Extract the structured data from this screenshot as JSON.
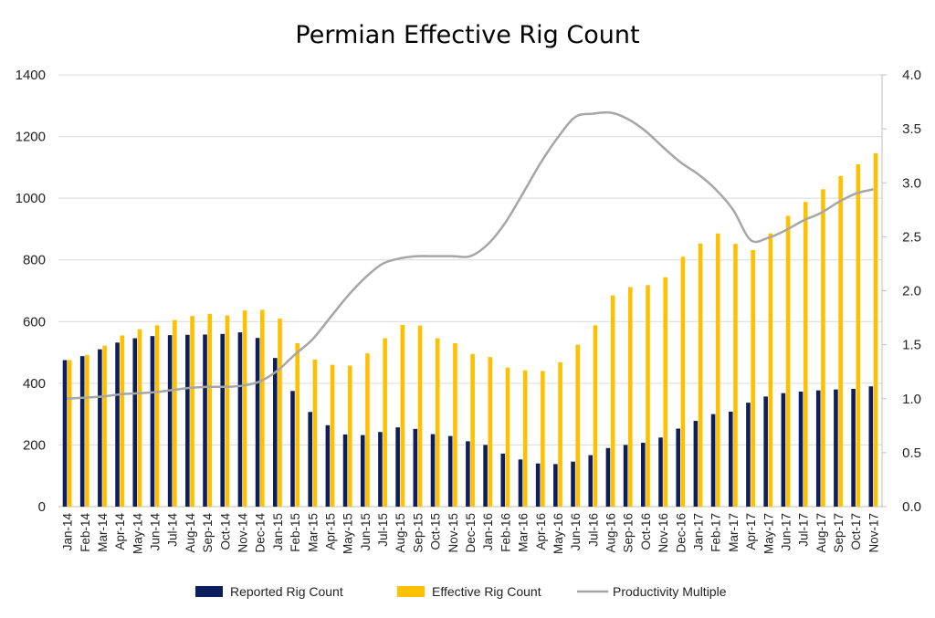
{
  "chart_data": {
    "type": "bar",
    "title": "Permian Effective Rig Count",
    "categories": [
      "Jan-14",
      "Feb-14",
      "Mar-14",
      "Apr-14",
      "May-14",
      "Jun-14",
      "Jul-14",
      "Aug-14",
      "Sep-14",
      "Oct-14",
      "Nov-14",
      "Dec-14",
      "Jan-15",
      "Feb-15",
      "Mar-15",
      "Apr-15",
      "May-15",
      "Jun-15",
      "Jul-15",
      "Aug-15",
      "Sep-15",
      "Oct-15",
      "Nov-15",
      "Dec-15",
      "Jan-16",
      "Feb-16",
      "Mar-16",
      "Apr-16",
      "May-16",
      "Jun-16",
      "Jul-16",
      "Aug-16",
      "Sep-16",
      "Oct-16",
      "Nov-16",
      "Dec-16",
      "Jan-17",
      "Feb-17",
      "Mar-17",
      "Apr-17",
      "May-17",
      "Jun-17",
      "Jul-17",
      "Aug-17",
      "Sep-17",
      "Oct-17",
      "Nov-17"
    ],
    "series": [
      {
        "name": "Reported Rig Count",
        "kind": "bar",
        "axis": "left",
        "color": "#0c1f5c",
        "values": [
          475,
          488,
          510,
          532,
          546,
          553,
          556,
          557,
          558,
          560,
          565,
          547,
          482,
          375,
          307,
          264,
          234,
          232,
          242,
          257,
          252,
          235,
          229,
          212,
          200,
          172,
          153,
          140,
          138,
          146,
          167,
          190,
          200,
          207,
          224,
          253,
          278,
          300,
          308,
          337,
          357,
          368,
          373,
          377,
          380,
          382,
          390
        ]
      },
      {
        "name": "Effective Rig Count",
        "kind": "bar",
        "axis": "left",
        "color": "#ffc000",
        "values": [
          475,
          492,
          522,
          555,
          575,
          588,
          605,
          618,
          625,
          620,
          636,
          638,
          610,
          530,
          477,
          460,
          457,
          497,
          546,
          589,
          587,
          546,
          530,
          495,
          485,
          451,
          442,
          440,
          468,
          525,
          588,
          685,
          712,
          718,
          744,
          810,
          853,
          886,
          852,
          832,
          886,
          943,
          988,
          1029,
          1072,
          1110,
          1146
        ]
      },
      {
        "name": "Productivity Multiple",
        "kind": "line",
        "axis": "right",
        "color": "#a6a6a6",
        "values": [
          1.0,
          1.01,
          1.02,
          1.04,
          1.05,
          1.06,
          1.08,
          1.1,
          1.11,
          1.11,
          1.12,
          1.16,
          1.26,
          1.41,
          1.55,
          1.75,
          1.95,
          2.12,
          2.25,
          2.3,
          2.32,
          2.32,
          2.32,
          2.32,
          2.43,
          2.63,
          2.9,
          3.18,
          3.42,
          3.61,
          3.64,
          3.65,
          3.59,
          3.48,
          3.33,
          3.19,
          3.08,
          2.94,
          2.75,
          2.47,
          2.49,
          2.56,
          2.65,
          2.72,
          2.82,
          2.9,
          2.94
        ]
      }
    ],
    "y_left": {
      "min": 0,
      "max": 1400,
      "ticks": [
        "0",
        "200",
        "400",
        "600",
        "800",
        "1000",
        "1200",
        "1400"
      ]
    },
    "y_right": {
      "min": 0,
      "max": 4.0,
      "ticks": [
        "0.0",
        "0.5",
        "1.0",
        "1.5",
        "2.0",
        "2.5",
        "3.0",
        "3.5",
        "4.0"
      ]
    },
    "grid": true,
    "legend_position": "bottom"
  }
}
